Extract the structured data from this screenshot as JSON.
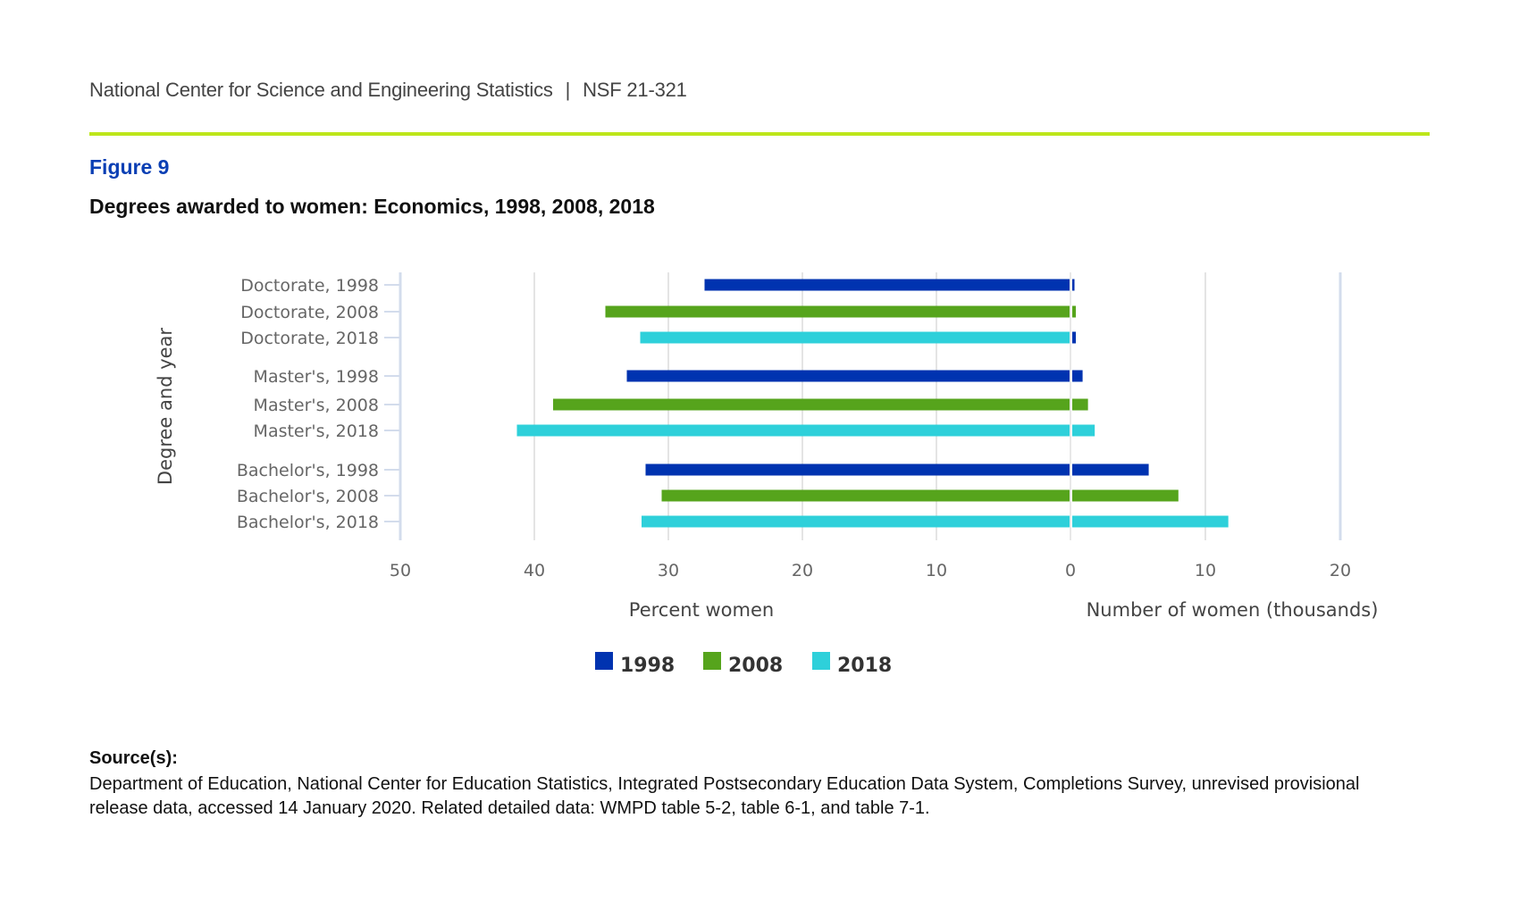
{
  "header": {
    "org": "National Center for Science and Engineering Statistics",
    "separator": "|",
    "report_id": "NSF 21-321"
  },
  "figure": {
    "number": "Figure 9",
    "title": "Degrees awarded to women: Economics, 1998, 2008, 2018"
  },
  "colors": {
    "rule": "#bde61a",
    "1998": "#0033b0",
    "2008": "#56a41c",
    "2018": "#2ed0da"
  },
  "chart_data": {
    "type": "bar",
    "orientation": "horizontal",
    "layout": "back-to-back (butterfly)",
    "title": "Degrees awarded to women: Economics, 1998, 2008, 2018",
    "ylabel": "Degree and year",
    "grid": true,
    "legend_position": "bottom-center",
    "legend": [
      "1998",
      "2008",
      "2018"
    ],
    "categories": [
      "Doctorate, 1998",
      "Doctorate, 2008",
      "Doctorate, 2018",
      "Master's, 1998",
      "Master's, 2008",
      "Master's, 2018",
      "Bachelor's, 1998",
      "Bachelor's, 2008",
      "Bachelor's, 2018"
    ],
    "category_series": [
      "1998",
      "2008",
      "2018",
      "1998",
      "2008",
      "2018",
      "1998",
      "2008",
      "2018"
    ],
    "panels": [
      {
        "name": "percent",
        "xlabel": "Percent women",
        "direction": "reversed",
        "xlim": [
          0,
          50
        ],
        "ticks": [
          50,
          40,
          30,
          20,
          10,
          0
        ],
        "values": [
          27.3,
          34.7,
          32.1,
          33.1,
          38.6,
          41.3,
          31.7,
          30.5,
          32.0
        ]
      },
      {
        "name": "count",
        "xlabel": "Number of women (thousands)",
        "direction": "normal",
        "xlim": [
          0,
          20
        ],
        "ticks": [
          10,
          20
        ],
        "values": [
          0.3,
          0.4,
          0.4,
          0.9,
          1.3,
          1.8,
          5.8,
          8.0,
          11.7
        ],
        "color_overrides": {
          "2": "1998"
        }
      }
    ]
  },
  "source": {
    "heading": "Source(s):",
    "text": "Department of Education, National Center for Education Statistics, Integrated Postsecondary Education Data System, Completions Survey, unrevised provisional release data, accessed 14 January 2020. Related detailed data: WMPD table 5-2, table 6-1, and table 7-1."
  }
}
